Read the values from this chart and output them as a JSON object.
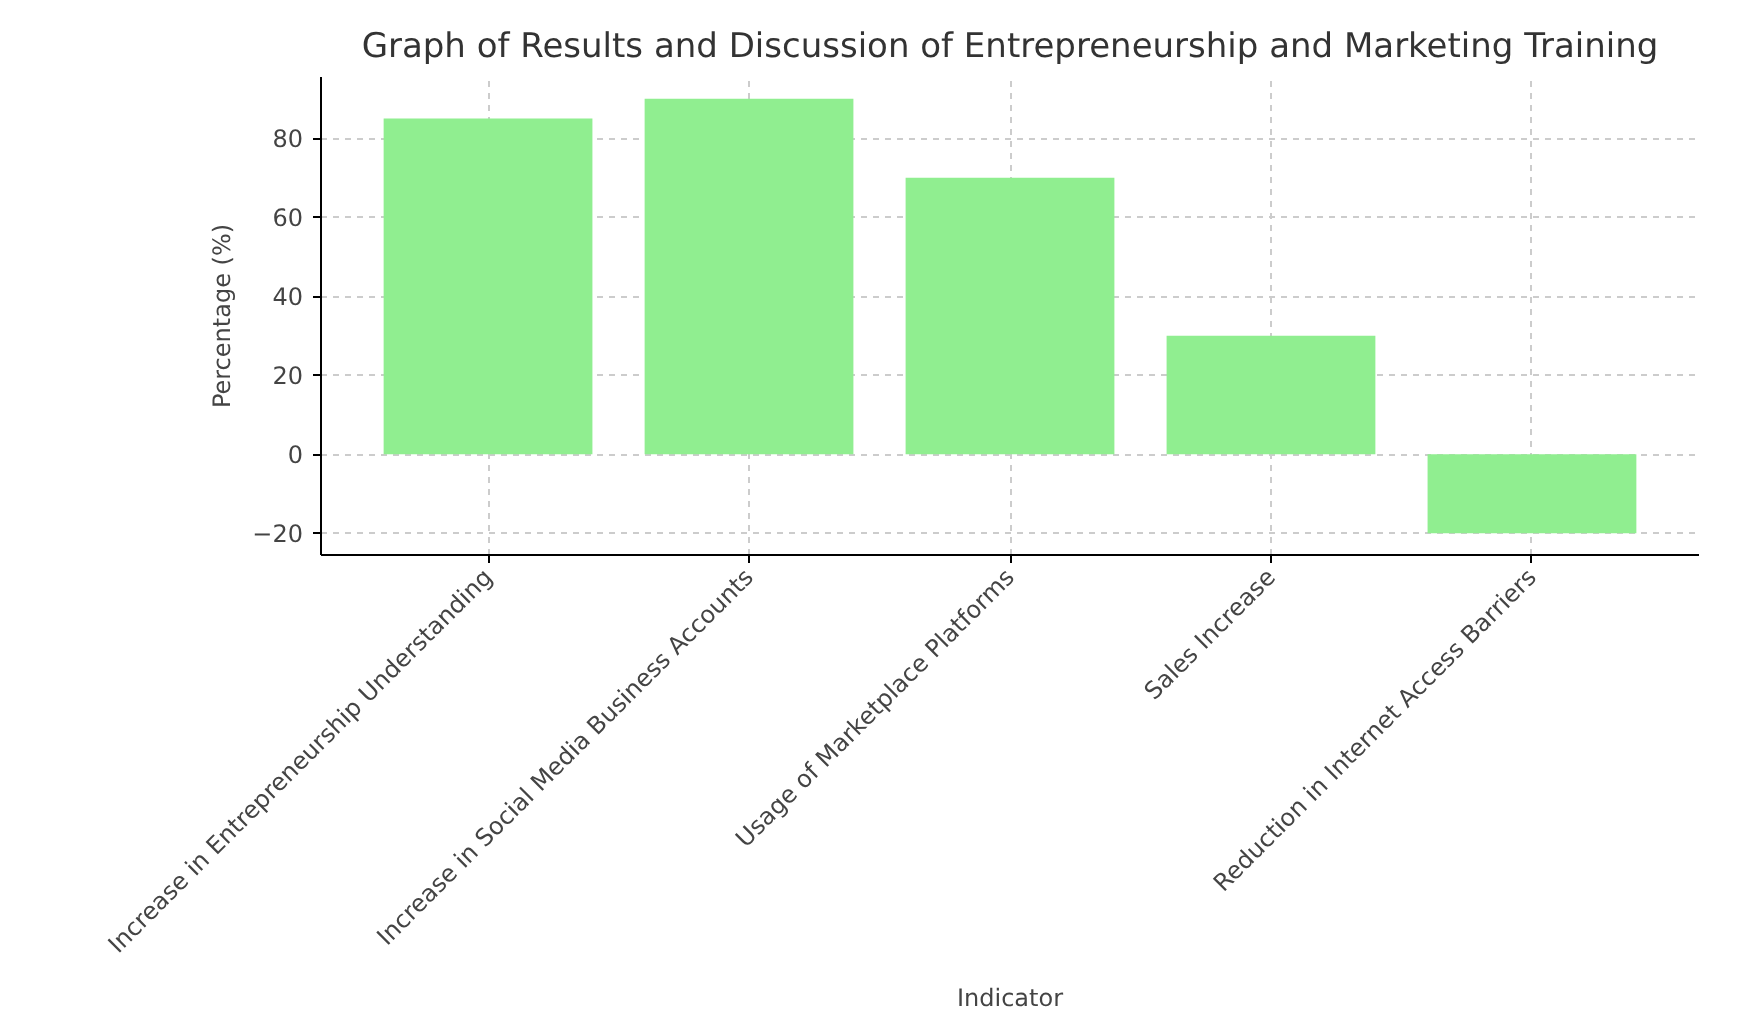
{
  "chart_data": {
    "type": "bar",
    "title": "Graph of Results and Discussion of Entrepreneurship and Marketing Training",
    "xlabel": "Indicator",
    "ylabel": "Percentage (%)",
    "categories": [
      "Increase in Entrepreneurship Understanding",
      "Increase in Social Media Business Accounts",
      "Usage of Marketplace Platforms",
      "Sales Increase",
      "Reduction in Internet Access Barriers"
    ],
    "values": [
      85,
      90,
      70,
      30,
      -20
    ],
    "color": "#90ee90",
    "ylim": [
      -25.5,
      95.5
    ],
    "yticks": [
      {
        "value": -20,
        "label": "−20"
      },
      0,
      20,
      40,
      60,
      80
    ],
    "grid": true
  }
}
